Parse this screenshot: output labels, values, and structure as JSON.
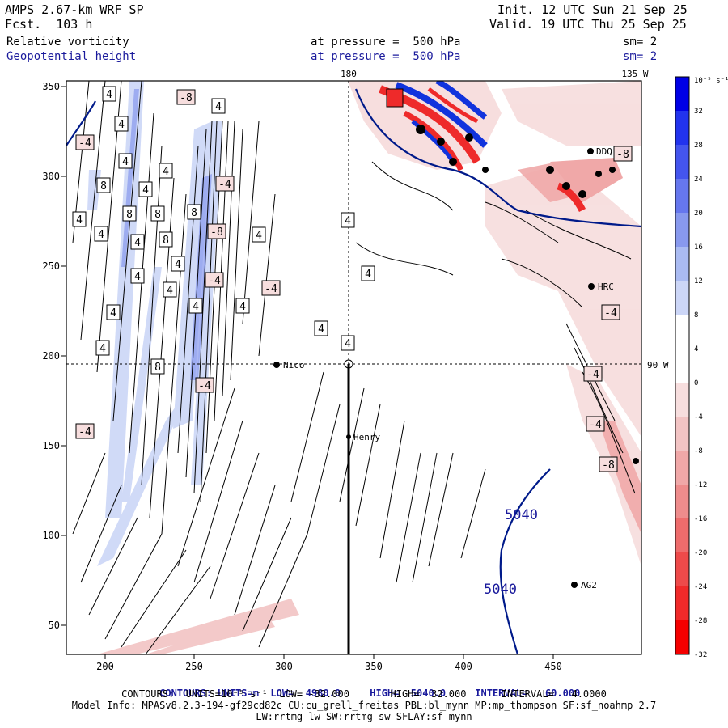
{
  "header": {
    "model": "AMPS 2.67-km WRF SP",
    "forecast": "Fcst.  103 h",
    "init": "Init. 12 UTC Sun 21 Sep 25",
    "valid": "Valid. 19 UTC Thu 25 Sep 25",
    "field1_name": "Relative vorticity",
    "field1_level": "at pressure =  500 hPa",
    "field1_sm": "sm= 2",
    "field2_name": "Geopotential height",
    "field2_level": "at pressure =  500 hPa",
    "field2_sm": "sm= 2"
  },
  "map": {
    "top_lon_label_1": "180",
    "top_lon_label_2": "135 W",
    "right_lon_label": "90 W",
    "x_ticks": [
      "200",
      "250",
      "300",
      "350",
      "400",
      "450"
    ],
    "y_ticks": [
      "350",
      "300",
      "250",
      "200",
      "150",
      "100",
      "50"
    ],
    "stations": [
      {
        "name": "HRC"
      },
      {
        "name": "AG2"
      },
      {
        "name": "Henry"
      },
      {
        "name": "Nico"
      },
      {
        "name": "DDQ"
      }
    ],
    "height_labels": [
      "5040",
      "5040"
    ],
    "vort_labels": [
      "4",
      "4",
      "4",
      "4",
      "4",
      "4",
      "4",
      "4",
      "4",
      "4",
      "4",
      "4",
      "4",
      "4",
      "4",
      "4",
      "4",
      "4",
      "4",
      "4",
      "4",
      "8",
      "8",
      "8",
      "8",
      "8",
      "8",
      "-4",
      "-4",
      "-4",
      "-4",
      "-4",
      "-4",
      "-4",
      "-4",
      "-4",
      "-8",
      "-8",
      "-8",
      "-8"
    ]
  },
  "colorbar": {
    "unit": "10⁻⁵ s⁻¹",
    "labels": [
      "32",
      "28",
      "24",
      "20",
      "16",
      "12",
      "8",
      "4",
      "0",
      "-4",
      "-8",
      "-12",
      "-16",
      "-20",
      "-24",
      "-28",
      "-32"
    ],
    "colors": [
      "#0000e6",
      "#2233ee",
      "#4455ee",
      "#6677ee",
      "#8899ee",
      "#aabbf2",
      "#ccd6f7",
      "#ffffff",
      "#ffffff",
      "#f7dede",
      "#f2c4c4",
      "#f0a8a8",
      "#ee8c8c",
      "#ee6c6c",
      "#ee4a4a",
      "#f02a2a",
      "#f50000"
    ]
  },
  "footer": {
    "line1_a": "CONTOURS: UNITS=m  LOW=  4980.0",
    "line1_b": "HIGH=  5040.0",
    "line1_c": "INTERVAL=   60.000",
    "line2": "CONTOURS:  UNITS=10⁻⁵ s⁻¹  LOW= -32.000       HIGH=  32.000      INTERVAL=   4.0000",
    "line3": "Model Info: MPASv8.2.3-194-gf29cd82c CU:cu_grell_freitas PBL:bl_mynn MP:mp_thompson SF:sf_noahmp 2.7",
    "line4": "LW:rrtmg_lw SW:rrtmg_sw SFLAY:sf_mynn"
  }
}
